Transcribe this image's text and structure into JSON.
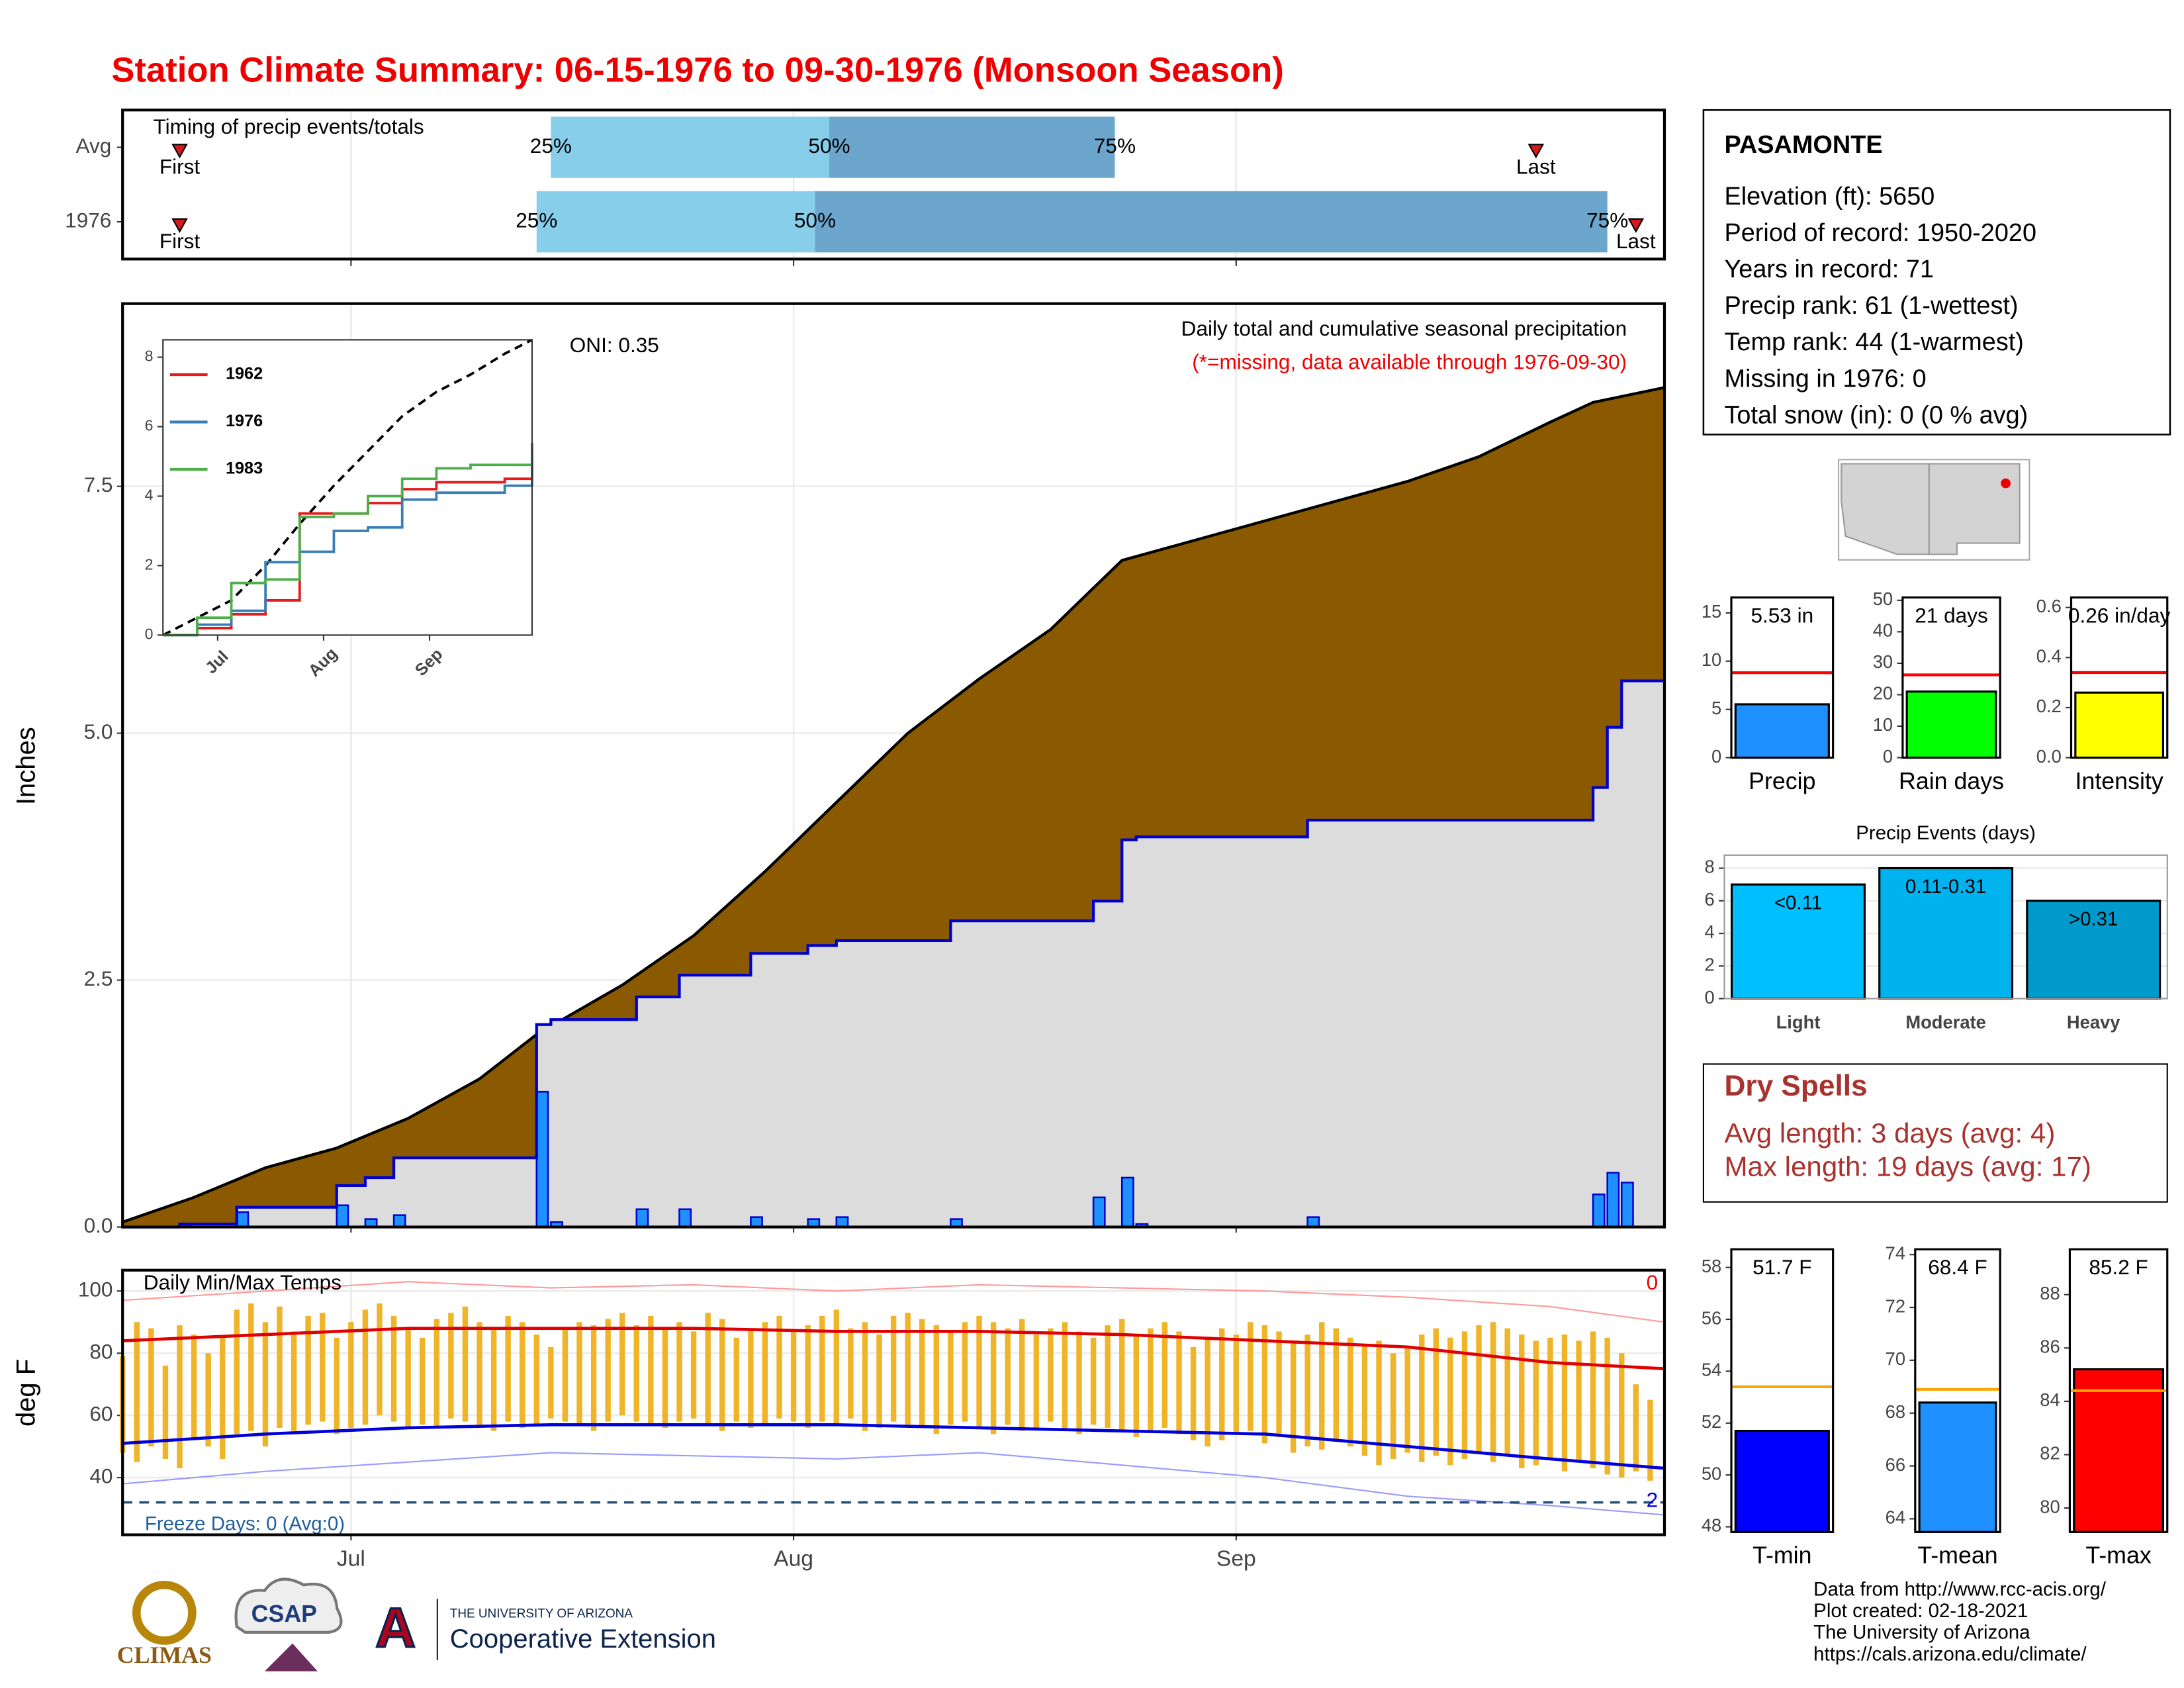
{
  "title": "Station Climate Summary: 06-15-1976 to 09-30-1976 (Monsoon Season)",
  "station": {
    "name": "PASAMONTE",
    "lines": [
      "Elevation (ft): 5650",
      "Period of record: 1950-2020",
      "Years in record: 71",
      "Precip rank: 61 (1-wettest)",
      "Temp rank: 44 (1-warmest)",
      "Missing in 1976: 0",
      "Total snow (in): 0 (0 % avg)"
    ]
  },
  "dry_spells": {
    "title": "Dry Spells",
    "lines": [
      "Avg length: 3 days (avg: 4)",
      "Max length: 19 days (avg: 17)"
    ]
  },
  "footer": {
    "credits": [
      "Data from http://www.rcc-acis.org/",
      "Plot created: 02-18-2021",
      "The University of Arizona",
      "https://cals.arizona.edu/climate/"
    ],
    "logos": [
      "CLIMAS",
      "CSAP",
      "THE UNIVERSITY OF ARIZONA",
      "Cooperative Extension"
    ]
  },
  "chart_data": [
    {
      "type": "timing",
      "title": "Timing of precip events/totals",
      "categories": [
        "Avg",
        "1976"
      ],
      "xlim": [
        0,
        108
      ],
      "xticks": [
        16,
        47,
        78
      ],
      "first": [
        4,
        4
      ],
      "q25": [
        30,
        29
      ],
      "q50": [
        49.5,
        48.5
      ],
      "q75": [
        69.5,
        104
      ],
      "last": [
        99,
        106
      ],
      "labels": {
        "first": "First",
        "q25": "25%",
        "q50": "50%",
        "q75": "75%",
        "last": "Last"
      },
      "colors": {
        "q25": "#87ceeb",
        "q50": "#6ca6cd",
        "marker": "#d7191c"
      }
    },
    {
      "type": "precip",
      "title": "Daily total and cumulative seasonal precipitation",
      "subtitle": "(*=missing, data available through 1976-09-30)",
      "annotation": "ONI: 0.35",
      "y_label": "Inches",
      "xlim": [
        0,
        108
      ],
      "xticks": [
        16,
        47,
        78
      ],
      "ylim": [
        0,
        9.35
      ],
      "yticks": [
        {
          "value": 0,
          "label": "0.0"
        },
        2.5,
        {
          "value": 5,
          "label": "5.0"
        },
        7.5
      ],
      "grid": true,
      "average": {
        "color": "#8b5a00",
        "x": [
          0,
          5,
          10,
          15,
          20,
          25,
          29,
          35,
          40,
          45,
          50,
          55,
          60,
          65,
          70,
          75,
          80,
          85,
          90,
          95,
          100,
          103,
          108
        ],
        "values": [
          0.05,
          0.3,
          0.6,
          0.8,
          1.1,
          1.5,
          1.95,
          2.45,
          2.95,
          3.6,
          4.3,
          5.0,
          5.55,
          6.05,
          6.75,
          6.95,
          7.15,
          7.35,
          7.55,
          7.8,
          8.15,
          8.35,
          8.5
        ]
      },
      "cumulative": {
        "color": "#0000cc",
        "fill": "#dcdcdc",
        "x": [
          0,
          4,
          8,
          15,
          17,
          19,
          29,
          30,
          36,
          39,
          44,
          48,
          50,
          58,
          68,
          70,
          71,
          83,
          103,
          104,
          105,
          108
        ],
        "values": [
          0,
          0.03,
          0.2,
          0.42,
          0.5,
          0.7,
          2.05,
          2.1,
          2.33,
          2.55,
          2.77,
          2.85,
          2.9,
          3.1,
          3.3,
          3.92,
          3.95,
          4.12,
          4.45,
          5.06,
          5.53,
          5.53
        ]
      },
      "daily": {
        "color": "#1e90ff",
        "x": [
          4,
          8,
          15,
          17,
          19,
          29,
          30,
          36,
          39,
          44,
          48,
          50,
          58,
          68,
          70,
          71,
          83,
          103,
          104,
          105
        ],
        "values": [
          0.03,
          0.15,
          0.22,
          0.08,
          0.12,
          1.37,
          0.05,
          0.18,
          0.18,
          0.1,
          0.08,
          0.1,
          0.08,
          0.3,
          0.5,
          0.03,
          0.1,
          0.33,
          0.55,
          0.45
        ]
      }
    },
    {
      "type": "line",
      "xlim": [
        0,
        108
      ],
      "xticks": [
        {
          "value": 16,
          "label": "Jul"
        },
        {
          "value": 47,
          "label": "Aug"
        },
        {
          "value": 78,
          "label": "Sep"
        }
      ],
      "ylim": [
        0,
        8.5
      ],
      "yticks": [
        0,
        2,
        4,
        6,
        8
      ],
      "x": [
        0,
        10,
        20,
        30,
        40,
        50,
        60,
        70,
        80,
        90,
        100,
        108
      ],
      "series": [
        {
          "name": "1962",
          "color": "#e41a1c",
          "values": [
            0,
            0.2,
            0.6,
            1.0,
            3.5,
            3.5,
            3.8,
            4.2,
            4.4,
            4.4,
            4.5,
            5.0
          ]
        },
        {
          "name": "1976",
          "color": "#377eb8",
          "values": [
            0,
            0.3,
            0.7,
            2.1,
            2.4,
            3.0,
            3.1,
            3.9,
            4.1,
            4.1,
            4.3,
            5.53
          ]
        },
        {
          "name": "1983",
          "color": "#4daf4a",
          "values": [
            0,
            0.5,
            1.5,
            1.6,
            3.4,
            3.5,
            4.0,
            4.5,
            4.8,
            4.9,
            4.9,
            4.9
          ]
        }
      ],
      "reference": {
        "color": "#000000",
        "values": [
          0,
          0.5,
          1.0,
          2.0,
          3.2,
          4.3,
          5.3,
          6.3,
          7.0,
          7.5,
          8.1,
          8.5
        ]
      }
    },
    {
      "type": "temps",
      "title": "Daily Min/Max Temps",
      "y_label": "deg F",
      "annotation": "Freeze Days: 0 (Avg:0)",
      "record_high_count": 0,
      "record_low_count": 2,
      "xlim": [
        0,
        108
      ],
      "xticks": [
        {
          "value": 16,
          "label": "Jul"
        },
        {
          "value": 47,
          "label": "Aug"
        },
        {
          "value": 78,
          "label": "Sep"
        }
      ],
      "ylim": [
        21.6,
        106.7
      ],
      "yticks": [
        40,
        60,
        80,
        100
      ],
      "freeze": 32,
      "grid": true,
      "bar_color": "#f0b429",
      "x": [
        0,
        1,
        2,
        3,
        4,
        5,
        6,
        7,
        8,
        9,
        10,
        11,
        12,
        13,
        14,
        15,
        16,
        17,
        18,
        19,
        20,
        21,
        22,
        23,
        24,
        25,
        26,
        27,
        28,
        29,
        30,
        31,
        32,
        33,
        34,
        35,
        36,
        37,
        38,
        39,
        40,
        41,
        42,
        43,
        44,
        45,
        46,
        47,
        48,
        49,
        50,
        51,
        52,
        53,
        54,
        55,
        56,
        57,
        58,
        59,
        60,
        61,
        62,
        63,
        64,
        65,
        66,
        67,
        68,
        69,
        70,
        71,
        72,
        73,
        74,
        75,
        76,
        77,
        78,
        79,
        80,
        81,
        82,
        83,
        84,
        85,
        86,
        87,
        88,
        89,
        90,
        91,
        92,
        93,
        94,
        95,
        96,
        97,
        98,
        99,
        100,
        101,
        102,
        103,
        104,
        105,
        106,
        107
      ],
      "daily_max": [
        79,
        90,
        88,
        76,
        89,
        86,
        80,
        85,
        94,
        96,
        90,
        95,
        87,
        92,
        93,
        85,
        90,
        94,
        96,
        92,
        88,
        85,
        91,
        93,
        95,
        90,
        88,
        92,
        90,
        86,
        82,
        88,
        90,
        89,
        91,
        93,
        89,
        92,
        88,
        90,
        87,
        93,
        91,
        85,
        88,
        90,
        92,
        87,
        89,
        92,
        94,
        88,
        90,
        86,
        92,
        93,
        91,
        89,
        87,
        90,
        92,
        90,
        88,
        91,
        86,
        88,
        90,
        87,
        85,
        89,
        91,
        86,
        88,
        90,
        87,
        82,
        85,
        88,
        86,
        90,
        89,
        87,
        84,
        86,
        90,
        88,
        85,
        83,
        84,
        80,
        82,
        86,
        88,
        85,
        87,
        89,
        90,
        88,
        86,
        84,
        85,
        86,
        84,
        87,
        85,
        80,
        70,
        65
      ],
      "daily_min": [
        48,
        45,
        50,
        46,
        43,
        52,
        50,
        46,
        54,
        55,
        50,
        56,
        55,
        57,
        58,
        54,
        56,
        57,
        60,
        58,
        56,
        57,
        56,
        59,
        58,
        57,
        55,
        58,
        56,
        57,
        59,
        58,
        57,
        55,
        58,
        60,
        58,
        57,
        56,
        58,
        59,
        57,
        55,
        58,
        56,
        57,
        59,
        58,
        56,
        58,
        57,
        59,
        55,
        56,
        58,
        57,
        56,
        54,
        57,
        58,
        56,
        54,
        57,
        55,
        56,
        58,
        55,
        54,
        57,
        56,
        55,
        53,
        55,
        56,
        54,
        52,
        50,
        52,
        54,
        55,
        51,
        53,
        48,
        50,
        49,
        52,
        50,
        47,
        44,
        46,
        48,
        45,
        47,
        44,
        46,
        48,
        45,
        47,
        43,
        44,
        46,
        42,
        45,
        43,
        41,
        40,
        42,
        39
      ],
      "normals_x": [
        0,
        10,
        20,
        30,
        40,
        50,
        60,
        70,
        80,
        90,
        100,
        108
      ],
      "avg_max": {
        "color": "#e00000",
        "values": [
          84,
          86,
          88,
          88,
          88,
          87,
          87,
          86,
          84,
          82,
          77,
          75
        ]
      },
      "avg_min": {
        "color": "#0000dd",
        "values": [
          51,
          54,
          56,
          57,
          57,
          57,
          56,
          55,
          54,
          50,
          46,
          43
        ]
      },
      "record_max": {
        "color": "#ff9999",
        "values": [
          97,
          100,
          103,
          101,
          102,
          100,
          102,
          101,
          100,
          98,
          95,
          90
        ]
      },
      "record_min": {
        "color": "#9999ff",
        "values": [
          38,
          42,
          45,
          48,
          47,
          46,
          48,
          44,
          40,
          34,
          31,
          28
        ]
      }
    },
    {
      "type": "summary_bar",
      "categories": [
        "Precip"
      ],
      "values": [
        5.53
      ],
      "value_labels": [
        "5.53 in"
      ],
      "average": 8.8,
      "color": "#1e90ff",
      "avg_color": "#ff0000",
      "ylim": [
        0,
        16.6
      ],
      "yticks": [
        0,
        5,
        10,
        15
      ]
    },
    {
      "type": "summary_bar",
      "categories": [
        "Rain days"
      ],
      "values": [
        21
      ],
      "value_labels": [
        "21 days"
      ],
      "average": 26.3,
      "color": "#00ff00",
      "avg_color": "#ff0000",
      "ylim": [
        0,
        50.9
      ],
      "yticks": [
        0,
        10,
        20,
        30,
        40,
        50
      ]
    },
    {
      "type": "summary_bar",
      "categories": [
        "Intensity"
      ],
      "values": [
        0.26
      ],
      "value_labels": [
        "0.26 in/day"
      ],
      "average": 0.34,
      "color": "#ffff00",
      "avg_color": "#ff0000",
      "ylim": [
        0,
        0.64
      ],
      "yticks": [
        {
          "value": 0,
          "label": "0.0"
        },
        0.2,
        0.4,
        0.6
      ]
    },
    {
      "type": "bar",
      "title": "Precip Events (days)",
      "categories": [
        "Light",
        "Moderate",
        "Heavy"
      ],
      "values": [
        7,
        8,
        6
      ],
      "ranges": [
        "<0.11",
        "0.11-0.31",
        ">0.31"
      ],
      "colors": [
        "#00bfff",
        "#00b2ee",
        "#009acd"
      ],
      "ylim": [
        0,
        8.8
      ],
      "yticks": [
        0,
        2,
        4,
        6,
        8
      ],
      "grid": true
    },
    {
      "type": "summary_bar",
      "categories": [
        "T-min"
      ],
      "values": [
        51.7
      ],
      "value_labels": [
        "51.7 F"
      ],
      "average": 53.4,
      "color": "#0000ff",
      "avg_color": "#ffa500",
      "ylim": [
        47.8,
        58.7
      ],
      "yticks": [
        48,
        50,
        52,
        54,
        56,
        58
      ]
    },
    {
      "type": "summary_bar",
      "categories": [
        "T-mean"
      ],
      "values": [
        68.4
      ],
      "value_labels": [
        "68.4 F"
      ],
      "average": 68.9,
      "color": "#1e90ff",
      "avg_color": "#ffa500",
      "ylim": [
        63.5,
        74.2
      ],
      "yticks": [
        64,
        66,
        68,
        70,
        72,
        74
      ]
    },
    {
      "type": "summary_bar",
      "categories": [
        "T-max"
      ],
      "values": [
        85.2
      ],
      "value_labels": [
        "85.2 F"
      ],
      "average": 84.4,
      "color": "#ff0000",
      "avg_color": "#ffa500",
      "ylim": [
        79.1,
        89.7
      ],
      "yticks": [
        80,
        82,
        84,
        86,
        88
      ]
    }
  ]
}
